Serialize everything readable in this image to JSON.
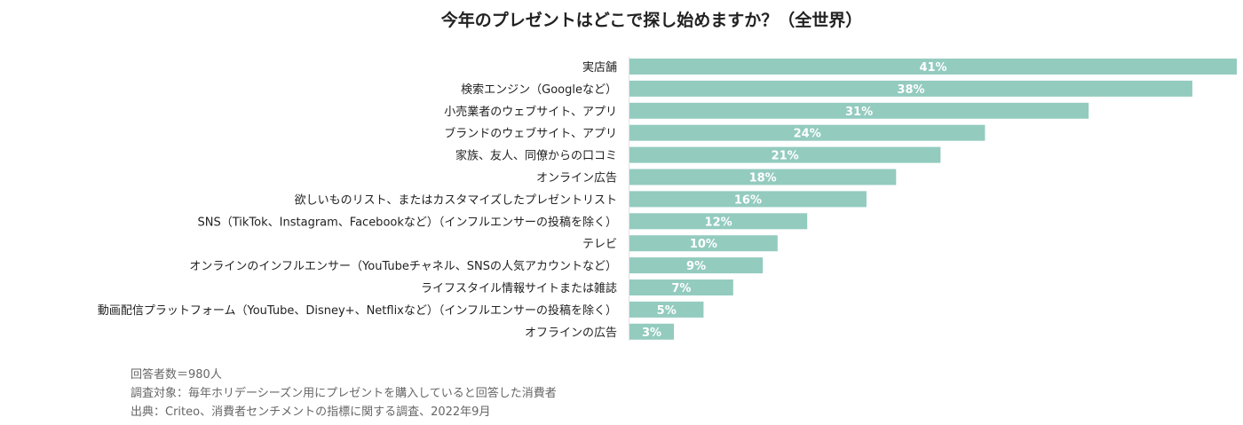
{
  "chart_data": {
    "type": "bar",
    "orientation": "horizontal",
    "title": "今年のプレゼントはどこで探し始めますか？（全世界）",
    "categories": [
      "実店舗",
      "検索エンジン（Googleなど）",
      "小売業者のウェブサイト、アプリ",
      "ブランドのウェブサイト、アプリ",
      "家族、友人、同僚からの口コミ",
      "オンライン広告",
      "欲しいものリスト、またはカスタマイズしたプレゼントリスト",
      "SNS（TikTok、Instagram、Facebookなど）（インフルエンサーの投稿を除く）",
      "テレビ",
      "オンラインのインフルエンサー（YouTubeチャネル、SNSの人気アカウントなど）",
      "ライフスタイル情報サイトまたは雑誌",
      "動画配信プラットフォーム（YouTube、Disney+、Netflixなど）（インフルエンサーの投稿を除く）",
      "オフラインの広告"
    ],
    "values": [
      41,
      38,
      31,
      24,
      21,
      18,
      16,
      12,
      10,
      9,
      7,
      5,
      3
    ],
    "value_labels": [
      "41%",
      "38%",
      "31%",
      "24%",
      "21%",
      "18%",
      "16%",
      "12%",
      "10%",
      "9%",
      "7%",
      "5%",
      "3%"
    ],
    "bar_color": "#93cbbf",
    "grid": false,
    "notes": [
      "回答者数＝980人",
      "調査対象：毎年ホリデーシーズン用にプレゼントを購入していると回答した消費者",
      "出典：Criteo、消費者センチメントの指標に関する調査、2022年9月"
    ]
  }
}
